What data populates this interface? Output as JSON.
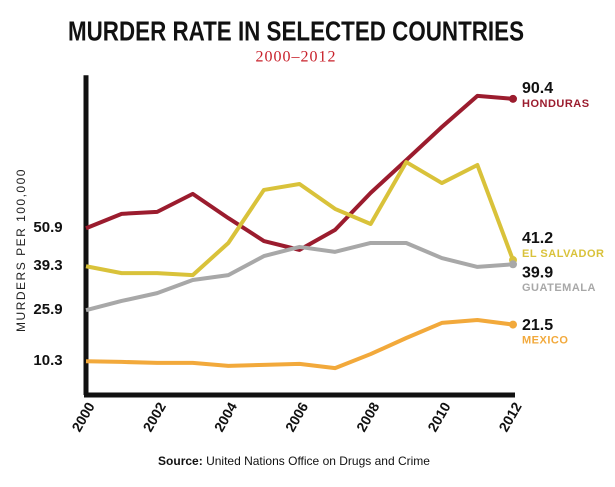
{
  "chart_data": {
    "type": "line",
    "title": "MURDER RATE IN SELECTED COUNTRIES",
    "subtitle": "2000–2012",
    "y_label": "MURDERS PER 100,000",
    "source_label": "Source:",
    "source_text": "United Nations Office on Drugs and Crime",
    "x": [
      2000,
      2001,
      2002,
      2003,
      2004,
      2005,
      2006,
      2007,
      2008,
      2009,
      2010,
      2011,
      2012
    ],
    "xlim": [
      2000,
      2012
    ],
    "xticks": [
      2000,
      2002,
      2004,
      2006,
      2008,
      2010,
      2012
    ],
    "ylim": [
      0,
      97
    ],
    "yticks": [
      10.3,
      25.9,
      39.3,
      50.9
    ],
    "series": [
      {
        "name": "HONDURAS",
        "color": "#9b1c2e",
        "values": [
          50.9,
          55.3,
          55.9,
          61.4,
          54.0,
          47.0,
          44.3,
          50.4,
          61.7,
          71.7,
          81.8,
          91.3,
          90.4
        ]
      },
      {
        "name": "EL SALVADOR",
        "color": "#d9c23a",
        "values": [
          39.3,
          37.2,
          37.2,
          36.6,
          46.4,
          62.6,
          64.4,
          56.8,
          52.2,
          71.1,
          64.7,
          70.2,
          41.2
        ]
      },
      {
        "name": "GUATEMALA",
        "color": "#a8a8a8",
        "values": [
          25.9,
          28.7,
          31.1,
          35.1,
          36.6,
          42.4,
          45.2,
          43.7,
          46.4,
          46.4,
          41.8,
          39.1,
          39.9
        ]
      },
      {
        "name": "MEXICO",
        "color": "#f2a93b",
        "values": [
          10.3,
          10.1,
          9.8,
          9.8,
          8.9,
          9.2,
          9.5,
          8.2,
          12.5,
          17.4,
          22.0,
          22.9,
          21.5
        ]
      }
    ]
  }
}
